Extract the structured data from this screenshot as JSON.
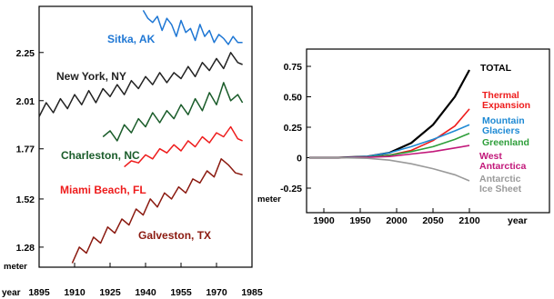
{
  "chart_data": [
    {
      "type": "line",
      "xlabel": "year",
      "ylabel": "meter",
      "xlim": [
        1895,
        1985
      ],
      "ylim": [
        1.18,
        2.48
      ],
      "x_ticks": [
        "1895",
        "1910",
        "1925",
        "1940",
        "1955",
        "1970",
        "1985"
      ],
      "x_tick_values": [
        1895,
        1910,
        1925,
        1940,
        1955,
        1970,
        1985
      ],
      "y_ticks": [
        "1.28",
        "1.52",
        "1.77",
        "2.01",
        "2.25"
      ],
      "y_tick_values": [
        1.28,
        1.52,
        1.77,
        2.01,
        2.25
      ],
      "grid": false,
      "series": [
        {
          "name": "Sitka, AK",
          "color": "#1f77d4",
          "x": [
            1939,
            1941,
            1943,
            1945,
            1947,
            1949,
            1951,
            1953,
            1955,
            1957,
            1959,
            1961,
            1963,
            1965,
            1967,
            1969,
            1971,
            1973,
            1975,
            1977,
            1979,
            1981
          ],
          "y": [
            2.46,
            2.42,
            2.4,
            2.43,
            2.36,
            2.42,
            2.39,
            2.33,
            2.41,
            2.35,
            2.37,
            2.31,
            2.39,
            2.33,
            2.36,
            2.3,
            2.34,
            2.32,
            2.29,
            2.33,
            2.3,
            2.3
          ]
        },
        {
          "name": "New York, NY",
          "color": "#222222",
          "x": [
            1895,
            1898,
            1901,
            1904,
            1907,
            1910,
            1913,
            1916,
            1919,
            1922,
            1925,
            1928,
            1931,
            1934,
            1937,
            1940,
            1943,
            1946,
            1949,
            1952,
            1955,
            1958,
            1961,
            1964,
            1967,
            1970,
            1973,
            1976,
            1979,
            1981
          ],
          "y": [
            1.93,
            2.0,
            1.95,
            2.02,
            1.97,
            2.04,
            1.99,
            2.06,
            2.0,
            2.07,
            2.03,
            2.09,
            2.04,
            2.11,
            2.07,
            2.13,
            2.09,
            2.15,
            2.1,
            2.15,
            2.12,
            2.18,
            2.13,
            2.2,
            2.16,
            2.22,
            2.17,
            2.25,
            2.2,
            2.19
          ]
        },
        {
          "name": "Charleston, NC",
          "color": "#1a5c2a",
          "x": [
            1922,
            1925,
            1928,
            1931,
            1934,
            1937,
            1940,
            1943,
            1946,
            1949,
            1952,
            1955,
            1958,
            1961,
            1964,
            1967,
            1970,
            1973,
            1976,
            1979,
            1981
          ],
          "y": [
            1.83,
            1.86,
            1.81,
            1.89,
            1.85,
            1.92,
            1.88,
            1.95,
            1.9,
            1.96,
            1.92,
            1.99,
            1.94,
            2.02,
            1.96,
            2.05,
            1.99,
            2.1,
            2.01,
            2.04,
            2.0
          ]
        },
        {
          "name": "Miami Beach, FL",
          "color": "#ee1c1c",
          "x": [
            1931,
            1934,
            1937,
            1940,
            1943,
            1946,
            1949,
            1952,
            1955,
            1958,
            1961,
            1964,
            1967,
            1970,
            1973,
            1976,
            1979,
            1981
          ],
          "y": [
            1.68,
            1.71,
            1.7,
            1.74,
            1.72,
            1.77,
            1.75,
            1.79,
            1.76,
            1.81,
            1.78,
            1.83,
            1.8,
            1.85,
            1.83,
            1.88,
            1.82,
            1.81
          ]
        },
        {
          "name": "Galveston, TX",
          "color": "#8b1a10",
          "x": [
            1909,
            1912,
            1915,
            1918,
            1921,
            1924,
            1927,
            1930,
            1933,
            1936,
            1939,
            1942,
            1945,
            1948,
            1951,
            1954,
            1957,
            1960,
            1963,
            1966,
            1969,
            1972,
            1975,
            1978,
            1981
          ],
          "y": [
            1.2,
            1.28,
            1.25,
            1.33,
            1.3,
            1.38,
            1.35,
            1.42,
            1.39,
            1.47,
            1.44,
            1.52,
            1.48,
            1.55,
            1.52,
            1.58,
            1.55,
            1.62,
            1.6,
            1.66,
            1.63,
            1.72,
            1.69,
            1.65,
            1.64
          ]
        }
      ],
      "labels": [
        {
          "text": "Sitka, AK",
          "color": "#1f77d4"
        },
        {
          "text": "New York, NY",
          "color": "#222222"
        },
        {
          "text": "Charleston, NC",
          "color": "#1a5c2a"
        },
        {
          "text": "Miami Beach, FL",
          "color": "#ee1c1c"
        },
        {
          "text": "Galveston, TX",
          "color": "#8b1a10"
        }
      ]
    },
    {
      "type": "line",
      "xlabel": "year",
      "ylabel": "meter",
      "xlim": [
        1880,
        2110
      ],
      "ylim": [
        -0.25,
        0.75
      ],
      "x_ticks": [
        "1900",
        "1950",
        "2000",
        "2050",
        "2100"
      ],
      "x_tick_values": [
        1900,
        1950,
        2000,
        2050,
        2100
      ],
      "y_ticks": [
        "0.75",
        "0.50",
        "0.25",
        "0",
        "-0.25"
      ],
      "y_tick_values": [
        0.75,
        0.5,
        0.25,
        0,
        -0.25
      ],
      "grid": false,
      "series": [
        {
          "name": "TOTAL",
          "color": "#000000",
          "x": [
            1880,
            1920,
            1960,
            1990,
            2020,
            2050,
            2080,
            2100
          ],
          "y": [
            0,
            0,
            0.01,
            0.04,
            0.12,
            0.27,
            0.5,
            0.72
          ]
        },
        {
          "name": "Thermal Expansion",
          "color": "#ee1c1c",
          "x": [
            1880,
            1920,
            1960,
            1990,
            2020,
            2050,
            2080,
            2100
          ],
          "y": [
            0,
            0,
            0.005,
            0.02,
            0.06,
            0.14,
            0.26,
            0.4
          ]
        },
        {
          "name": "Mountain Glaciers",
          "color": "#1f8ad4",
          "x": [
            1880,
            1920,
            1960,
            1990,
            2020,
            2050,
            2080,
            2100
          ],
          "y": [
            0,
            0,
            0.01,
            0.04,
            0.09,
            0.15,
            0.22,
            0.27
          ]
        },
        {
          "name": "Greenland",
          "color": "#2e9e3a",
          "x": [
            1880,
            1920,
            1960,
            1990,
            2020,
            2050,
            2080,
            2100
          ],
          "y": [
            0,
            0,
            0.005,
            0.02,
            0.05,
            0.09,
            0.15,
            0.2
          ]
        },
        {
          "name": "West Antarctica",
          "color": "#c2187a",
          "x": [
            1880,
            1920,
            1960,
            1990,
            2020,
            2050,
            2080,
            2100
          ],
          "y": [
            0,
            0,
            0.003,
            0.01,
            0.03,
            0.05,
            0.08,
            0.1
          ]
        },
        {
          "name": "Antarctic Ice Sheet",
          "color": "#9a9a9a",
          "x": [
            1880,
            1920,
            1960,
            1990,
            2020,
            2050,
            2080,
            2100
          ],
          "y": [
            0,
            0,
            -0.005,
            -0.02,
            -0.05,
            -0.09,
            -0.14,
            -0.19
          ]
        }
      ],
      "labels": [
        {
          "lines": [
            "TOTAL"
          ],
          "color": "#000000"
        },
        {
          "lines": [
            "Thermal",
            "Expansion"
          ],
          "color": "#ee1c1c"
        },
        {
          "lines": [
            "Mountain",
            "Glaciers"
          ],
          "color": "#1f8ad4"
        },
        {
          "lines": [
            "Greenland"
          ],
          "color": "#2e9e3a"
        },
        {
          "lines": [
            "West",
            "Antarctica"
          ],
          "color": "#c2187a"
        },
        {
          "lines": [
            "Antarctic",
            "Ice Sheet"
          ],
          "color": "#9a9a9a"
        }
      ]
    }
  ]
}
